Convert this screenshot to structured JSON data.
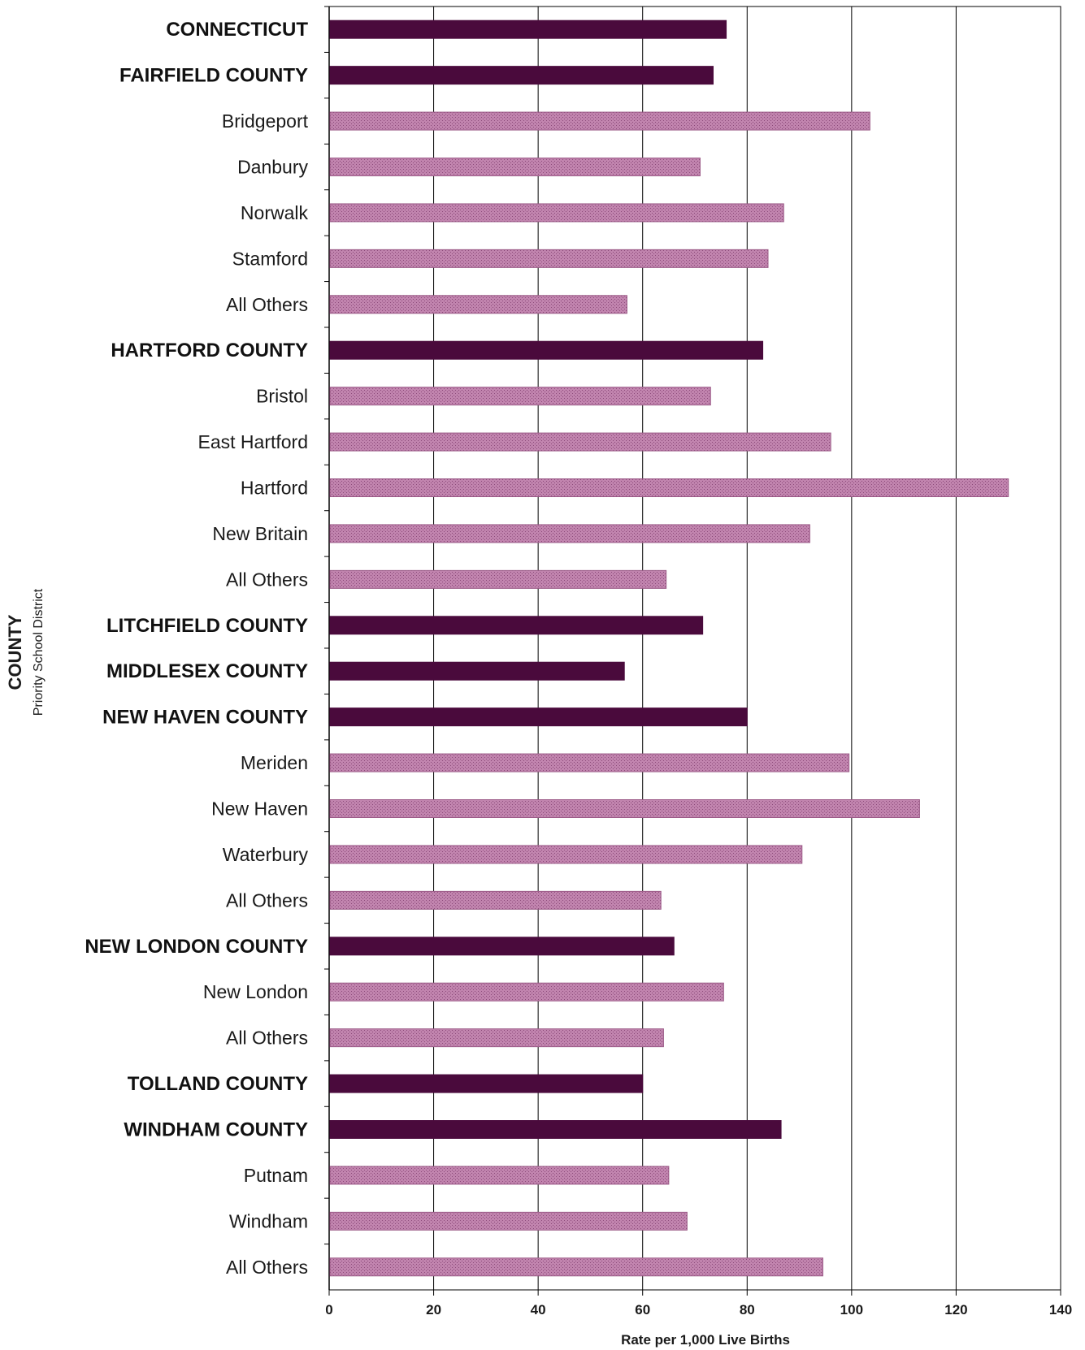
{
  "chart_data": {
    "type": "bar",
    "orientation": "horizontal",
    "xlabel": "Rate per 1,000 Live Births",
    "ylabel": "COUNTY",
    "ylabel_sub": "Priority School District",
    "xlim": [
      0,
      140
    ],
    "xticks": [
      0,
      20,
      40,
      60,
      80,
      100,
      120,
      140
    ],
    "grid": true,
    "categories": [
      "CONNECTICUT",
      "FAIRFIELD COUNTY",
      "Bridgeport",
      "Danbury",
      "Norwalk",
      "Stamford",
      "All Others",
      "HARTFORD COUNTY",
      "Bristol",
      "East Hartford",
      "Hartford",
      "New Britain",
      "All Others",
      "LITCHFIELD COUNTY",
      "MIDDLESEX COUNTY",
      "NEW HAVEN COUNTY",
      "Meriden",
      "New Haven",
      "Waterbury",
      "All Others",
      "NEW LONDON COUNTY",
      "New London",
      "All Others",
      "TOLLAND COUNTY",
      "WINDHAM COUNTY",
      "Putnam",
      "Windham",
      "All Others"
    ],
    "values": [
      76,
      73.5,
      103.5,
      71,
      87,
      84,
      57,
      83,
      73,
      96,
      130,
      92,
      64.5,
      71.5,
      56.5,
      80,
      99.5,
      113,
      90.5,
      63.5,
      66,
      75.5,
      64,
      60,
      86.5,
      65,
      68.5,
      94.5
    ],
    "is_county": [
      true,
      true,
      false,
      false,
      false,
      false,
      false,
      true,
      false,
      false,
      false,
      false,
      false,
      true,
      true,
      true,
      false,
      false,
      false,
      false,
      true,
      false,
      false,
      true,
      true,
      false,
      false,
      false
    ],
    "colors": {
      "county": "#4a0a3c",
      "district": "#b8729f",
      "grid": "#000000"
    }
  }
}
